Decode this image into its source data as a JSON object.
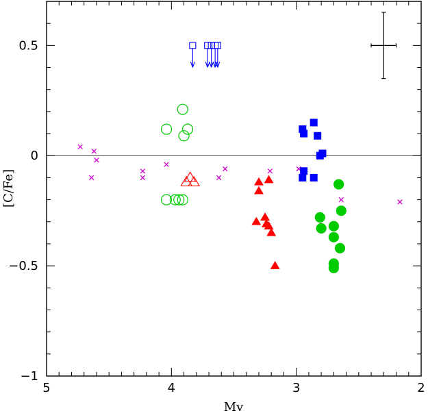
{
  "chart_data": {
    "type": "scatter",
    "title": "",
    "xlabel": "Mv",
    "ylabel": "[C/Fe]",
    "xlim": [
      5,
      2
    ],
    "ylim": [
      -1,
      0.7
    ],
    "x_reversed": true,
    "grid": false,
    "x_ticks": [
      {
        "value": 5,
        "label": "5"
      },
      {
        "value": 4,
        "label": "4"
      },
      {
        "value": 3,
        "label": "3"
      },
      {
        "value": 2,
        "label": "2"
      }
    ],
    "y_ticks": [
      {
        "value": 0.5,
        "label": "0.5"
      },
      {
        "value": 0,
        "label": "0"
      },
      {
        "value": -0.5,
        "label": "−0.5"
      },
      {
        "value": -1,
        "label": "−1"
      }
    ],
    "reference_line": {
      "y": 0
    },
    "error_bar": {
      "x": 2.3,
      "y": 0.5,
      "xerr": 0.1,
      "yerr": 0.15
    },
    "series": [
      {
        "marker": "cross",
        "color": "#cc00cc",
        "filled": false,
        "points": [
          [
            4.73,
            0.04
          ],
          [
            4.62,
            0.02
          ],
          [
            4.6,
            -0.02
          ],
          [
            4.64,
            -0.1
          ],
          [
            4.23,
            -0.07
          ],
          [
            4.23,
            -0.1
          ],
          [
            4.04,
            -0.04
          ],
          [
            3.57,
            -0.06
          ],
          [
            3.62,
            -0.1
          ],
          [
            3.21,
            -0.07
          ],
          [
            2.98,
            -0.06
          ],
          [
            2.64,
            -0.2
          ],
          [
            2.17,
            -0.21
          ]
        ]
      },
      {
        "marker": "circle",
        "color": "#00cc00",
        "filled": false,
        "points": [
          [
            3.91,
            0.21
          ],
          [
            4.04,
            0.12
          ],
          [
            3.87,
            0.12
          ],
          [
            3.9,
            0.09
          ],
          [
            4.04,
            -0.2
          ],
          [
            3.97,
            -0.2
          ],
          [
            3.94,
            -0.2
          ],
          [
            3.91,
            -0.2
          ]
        ]
      },
      {
        "marker": "triangle",
        "color": "#ff0000",
        "filled": false,
        "points": [
          [
            3.85,
            -0.1
          ],
          [
            3.88,
            -0.12
          ],
          [
            3.82,
            -0.12
          ]
        ]
      },
      {
        "marker": "square",
        "color": "#0000ff",
        "filled": false,
        "upper_limit": true,
        "points": [
          [
            3.83,
            0.5
          ],
          [
            3.71,
            0.5
          ],
          [
            3.68,
            0.5
          ],
          [
            3.65,
            0.5
          ],
          [
            3.63,
            0.5
          ]
        ]
      },
      {
        "marker": "triangle",
        "color": "#ff0000",
        "filled": true,
        "points": [
          [
            3.3,
            -0.12
          ],
          [
            3.3,
            -0.16
          ],
          [
            3.22,
            -0.11
          ],
          [
            3.32,
            -0.3
          ],
          [
            3.25,
            -0.28
          ],
          [
            3.24,
            -0.31
          ],
          [
            3.22,
            -0.32
          ],
          [
            3.2,
            -0.35
          ],
          [
            3.17,
            -0.5
          ]
        ]
      },
      {
        "marker": "square",
        "color": "#0000ff",
        "filled": true,
        "points": [
          [
            2.95,
            0.12
          ],
          [
            2.94,
            0.1
          ],
          [
            2.86,
            0.15
          ],
          [
            2.83,
            0.09
          ],
          [
            2.79,
            0.01
          ],
          [
            2.81,
            0.0
          ],
          [
            2.94,
            -0.07
          ],
          [
            2.95,
            -0.1
          ],
          [
            2.86,
            -0.1
          ]
        ]
      },
      {
        "marker": "circle",
        "color": "#00cc00",
        "filled": true,
        "points": [
          [
            2.66,
            -0.13
          ],
          [
            2.64,
            -0.25
          ],
          [
            2.81,
            -0.28
          ],
          [
            2.7,
            -0.32
          ],
          [
            2.8,
            -0.33
          ],
          [
            2.7,
            -0.37
          ],
          [
            2.65,
            -0.42
          ],
          [
            2.7,
            -0.49
          ],
          [
            2.7,
            -0.51
          ]
        ]
      }
    ]
  }
}
